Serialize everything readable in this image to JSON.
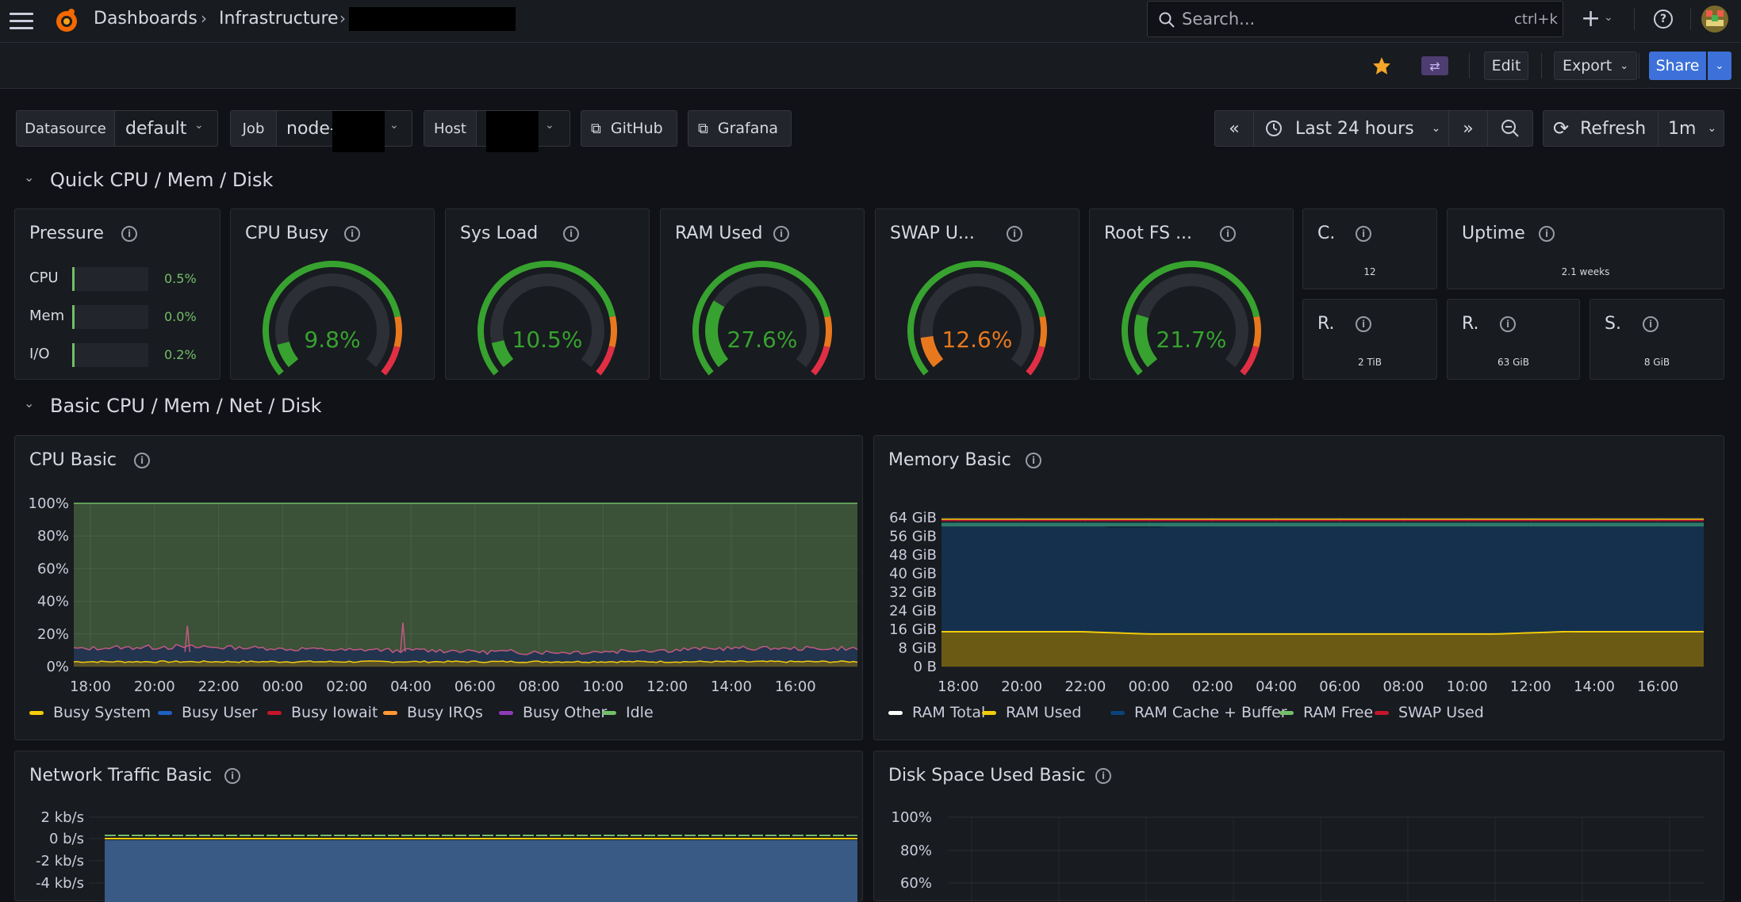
{
  "nav": {
    "breadcrumb": [
      "Dashboards",
      "Infrastructure"
    ],
    "search_placeholder": "Search...",
    "search_shortcut": "ctrl+k",
    "plus": "+",
    "help": "?"
  },
  "toolbar": {
    "edit": "Edit",
    "export": "Export",
    "share": "Share",
    "accent_star": "#f5a52a",
    "share_color": "#3d71d9"
  },
  "variables": {
    "datasource_label": "Datasource",
    "datasource_value": "default",
    "job_label": "Job",
    "job_value": "node-",
    "host_label": "Host",
    "links": [
      "GitHub",
      "Grafana"
    ]
  },
  "time": {
    "range": "Last 24 hours",
    "refresh": "Refresh",
    "interval": "1m"
  },
  "sections": {
    "quick": "Quick CPU / Mem / Disk",
    "basic": "Basic CPU / Mem / Net / Disk"
  },
  "pressure": {
    "title": "Pressure",
    "rows": [
      {
        "label": "CPU",
        "value": "0.5%"
      },
      {
        "label": "Mem",
        "value": "0.0%"
      },
      {
        "label": "I/O",
        "value": "0.2%"
      }
    ]
  },
  "gauges": [
    {
      "title": "CPU Busy",
      "value": "9.8%",
      "pct": 9.8,
      "color": "#37a22f"
    },
    {
      "title": "Sys Load",
      "value": "10.5%",
      "pct": 10.5,
      "color": "#37a22f"
    },
    {
      "title": "RAM Used",
      "value": "27.6%",
      "pct": 27.6,
      "color": "#37a22f"
    },
    {
      "title": "SWAP U...",
      "value": "12.6%",
      "pct": 12.6,
      "color": "#e8781e"
    },
    {
      "title": "Root FS ...",
      "value": "21.7%",
      "pct": 21.7,
      "color": "#37a22f"
    }
  ],
  "stats": [
    {
      "title": "C.",
      "value": "12"
    },
    {
      "title": "Uptime",
      "value": "2.1 weeks"
    },
    {
      "title": "R.",
      "value": "2 TiB"
    },
    {
      "title": "R.",
      "value": "63 GiB"
    },
    {
      "title": "S.",
      "value": "8 GiB"
    }
  ],
  "cpu_panel": {
    "title": "CPU Basic",
    "legend": [
      "Busy System",
      "Busy User",
      "Busy Iowait",
      "Busy IRQs",
      "Busy Other",
      "Idle"
    ],
    "legend_colors": [
      "#f2cc0c",
      "#1f60c4",
      "#c4162a",
      "#ff9830",
      "#8f3bb8",
      "#73bf69"
    ]
  },
  "mem_panel": {
    "title": "Memory Basic",
    "legend": [
      "RAM Total",
      "RAM Used",
      "RAM Cache + Buffer",
      "RAM Free",
      "SWAP Used"
    ],
    "legend_colors": [
      "#ffffff",
      "#f2cc0c",
      "#0a437c",
      "#73bf69",
      "#c4162a"
    ]
  },
  "net_panel": {
    "title": "Network Traffic Basic"
  },
  "disk_panel": {
    "title": "Disk Space Used Basic"
  },
  "chart_data": [
    {
      "type": "area",
      "title": "CPU Basic",
      "x": [
        "18:00",
        "20:00",
        "22:00",
        "00:00",
        "02:00",
        "04:00",
        "06:00",
        "08:00",
        "10:00",
        "12:00",
        "14:00",
        "16:00"
      ],
      "ytick_labels": [
        "0%",
        "20%",
        "40%",
        "60%",
        "80%",
        "100%"
      ],
      "ylim": [
        0,
        100
      ],
      "series": [
        {
          "name": "Busy System",
          "values": [
            3,
            3,
            3,
            3,
            3,
            3,
            3,
            3,
            3,
            3,
            3,
            3
          ]
        },
        {
          "name": "Busy User",
          "values": [
            8,
            9,
            9,
            8,
            7,
            7,
            6,
            6,
            7,
            8,
            8,
            8
          ]
        },
        {
          "name": "Busy Iowait",
          "values": [
            0,
            0,
            0,
            0,
            0,
            0,
            0,
            0,
            0,
            0,
            0,
            0
          ]
        },
        {
          "name": "Busy IRQs",
          "values": [
            0,
            0,
            0,
            0,
            0,
            0,
            0,
            0,
            0,
            0,
            0,
            0
          ]
        },
        {
          "name": "Busy Other",
          "values": [
            0,
            0,
            0,
            0,
            0,
            0,
            0,
            0,
            0,
            0,
            0,
            0
          ]
        },
        {
          "name": "Idle",
          "values": [
            89,
            88,
            88,
            89,
            90,
            90,
            91,
            91,
            90,
            89,
            89,
            89
          ]
        }
      ]
    },
    {
      "type": "area",
      "title": "Memory Basic",
      "x": [
        "18:00",
        "20:00",
        "22:00",
        "00:00",
        "02:00",
        "04:00",
        "06:00",
        "08:00",
        "10:00",
        "12:00",
        "14:00",
        "16:00"
      ],
      "ytick_labels": [
        "0 B",
        "8 GiB",
        "16 GiB",
        "24 GiB",
        "32 GiB",
        "40 GiB",
        "48 GiB",
        "56 GiB",
        "64 GiB"
      ],
      "ylim": [
        0,
        64
      ],
      "series": [
        {
          "name": "RAM Total",
          "values": [
            63,
            63,
            63,
            63,
            63,
            63,
            63,
            63,
            63,
            63,
            63,
            63
          ]
        },
        {
          "name": "RAM Used",
          "values": [
            15,
            15,
            15,
            14,
            14,
            14,
            14,
            14,
            14,
            15,
            15,
            15
          ]
        },
        {
          "name": "RAM Cache + Buffer",
          "values": [
            44,
            44,
            44,
            45,
            45,
            45,
            45,
            45,
            45,
            44,
            44,
            44
          ]
        },
        {
          "name": "RAM Free",
          "values": [
            2,
            2,
            2,
            2,
            2,
            2,
            2,
            2,
            2,
            2,
            2,
            2
          ]
        },
        {
          "name": "SWAP Used",
          "values": [
            1,
            1,
            1,
            1,
            1,
            1,
            1,
            1,
            1,
            1,
            1,
            1
          ]
        }
      ]
    },
    {
      "type": "area",
      "title": "Network Traffic Basic",
      "ytick_labels": [
        "2 kb/s",
        "0 b/s",
        "-2 kb/s",
        "-4 kb/s"
      ]
    },
    {
      "type": "line",
      "title": "Disk Space Used Basic",
      "ytick_labels": [
        "100%",
        "80%",
        "60%"
      ]
    }
  ]
}
